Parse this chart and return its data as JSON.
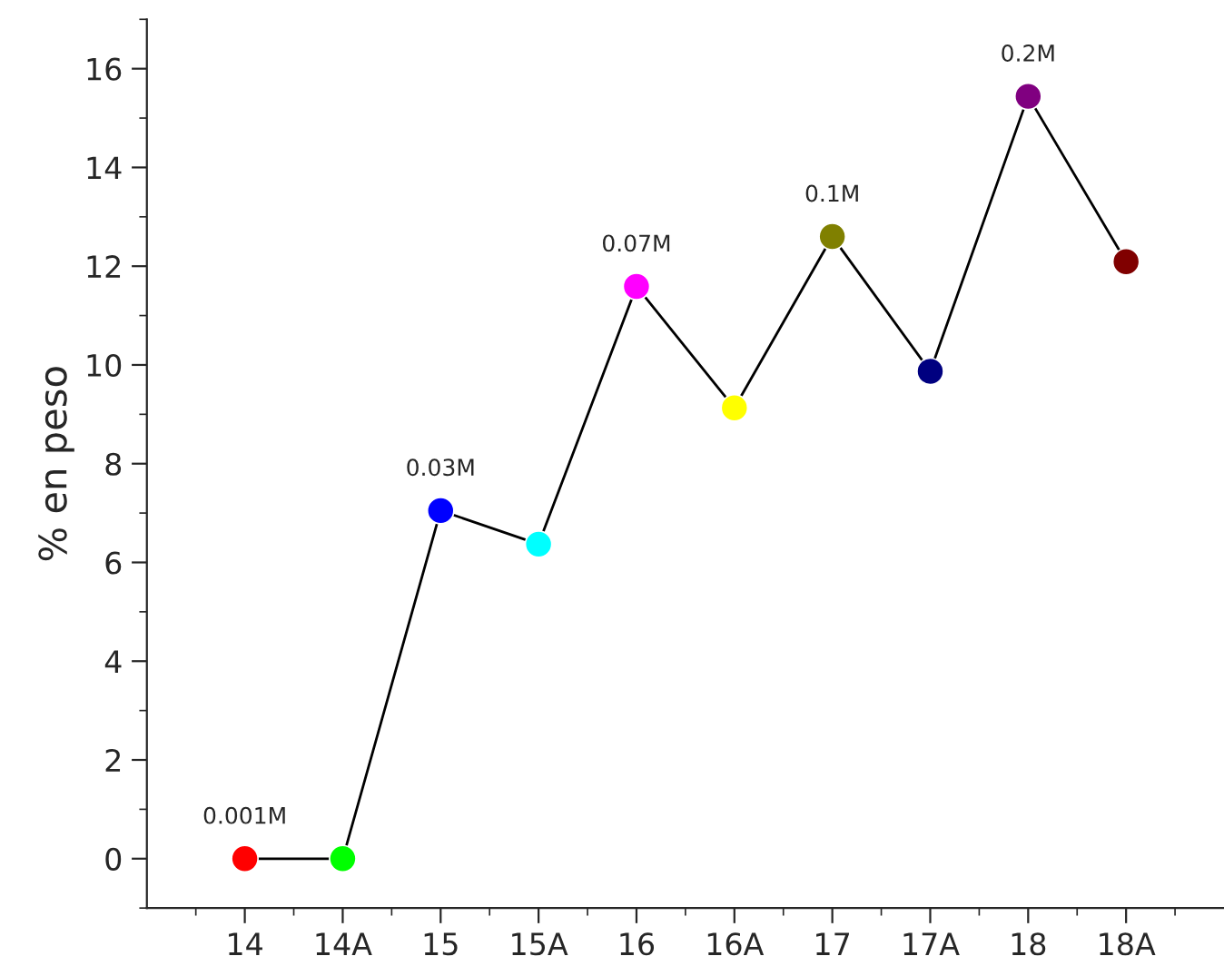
{
  "chart_data": {
    "type": "line",
    "ylabel": "% en peso",
    "categories": [
      "14",
      "14A",
      "15",
      "15A",
      "16",
      "16A",
      "17",
      "17A",
      "18",
      "18A"
    ],
    "series": [
      {
        "color": "#000000",
        "colors": [
          "#ff0000",
          "#00ff00",
          "#0000ff",
          "#00ffff",
          "#ff00ff",
          "#ffff00",
          "#808000",
          "#000080",
          "#800080",
          "#800000"
        ],
        "values": [
          0,
          0,
          7.05,
          6.37,
          11.59,
          9.13,
          12.6,
          9.87,
          15.44,
          12.09
        ]
      }
    ],
    "ylim": [
      -1,
      17
    ],
    "yticks": [
      0,
      2,
      4,
      6,
      8,
      10,
      12,
      14,
      16
    ],
    "marker": "circle",
    "line_style": "solid",
    "grid": false,
    "legend": false,
    "annotations": [
      {
        "text": "0.001M",
        "x": "14",
        "y": 0
      },
      {
        "text": "0.03M",
        "x": "15",
        "y": 7.05
      },
      {
        "text": "0.07M",
        "x": "16",
        "y": 11.59
      },
      {
        "text": "0.1M",
        "x": "17",
        "y": 12.6
      },
      {
        "text": "0.2M",
        "x": "18",
        "y": 15.44
      }
    ]
  }
}
